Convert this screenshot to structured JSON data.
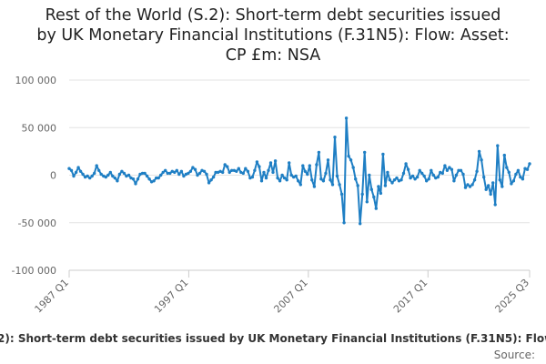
{
  "chart_data": {
    "type": "line",
    "title_lines": [
      "Rest of the World (S.2): Short-term debt securities issued",
      "by UK Monetary Financial Institutions (F.31N5): Flow: Asset:",
      "CP £m: NSA"
    ],
    "series_name": "Rest of the World (S.2): Short-term debt securities issued by UK Monetary Financial Institutions (F.31N5): Flow: Asset: CP £m: NSA",
    "source_label": "Source:",
    "ylim": [
      -100000,
      100000
    ],
    "yticks": [
      100000,
      50000,
      0,
      -50000,
      -100000
    ],
    "ytick_labels": [
      "100 000",
      "50 000",
      "0",
      "-50 000",
      "-100 000"
    ],
    "xticks": [
      {
        "label": "1987 Q1",
        "x": 1987.0
      },
      {
        "label": "1997 Q1",
        "x": 1997.0
      },
      {
        "label": "2007 Q1",
        "x": 2007.0
      },
      {
        "label": "2017 Q1",
        "x": 2017.0
      },
      {
        "label": "2025 Q3",
        "x": 2025.5
      }
    ],
    "x_start": "1987 Q1",
    "x_end": "2025 Q3",
    "grid": true,
    "line_color": "#1f7fc4",
    "values": [
      7000,
      5000,
      -1000,
      3000,
      8000,
      4000,
      1000,
      -2000,
      -1000,
      -3000,
      -1000,
      2000,
      10000,
      5000,
      1000,
      -1000,
      -2000,
      0,
      3000,
      -1000,
      -3000,
      -6000,
      1000,
      4000,
      2000,
      -1000,
      0,
      -3000,
      -4000,
      -9000,
      -4000,
      1000,
      2000,
      2000,
      -1000,
      -4000,
      -7000,
      -6000,
      -3000,
      -3000,
      0,
      3000,
      5000,
      2000,
      2000,
      4000,
      3000,
      5000,
      1000,
      4000,
      -1000,
      1000,
      2000,
      4000,
      8000,
      6000,
      0,
      2000,
      5000,
      4000,
      1000,
      -8000,
      -5000,
      -2000,
      3000,
      3000,
      4000,
      3000,
      11000,
      9000,
      3000,
      5000,
      5000,
      4000,
      7000,
      3000,
      2000,
      7000,
      4000,
      -3000,
      -2000,
      5000,
      14000,
      9000,
      -6000,
      3000,
      -3000,
      5000,
      13000,
      3000,
      15000,
      -3000,
      -6000,
      0,
      -3000,
      -5000,
      13000,
      0,
      -2000,
      -1000,
      -6000,
      -10000,
      10000,
      4000,
      1000,
      10000,
      -5000,
      -12000,
      11000,
      24000,
      -4000,
      -6000,
      2000,
      16000,
      -5000,
      -10000,
      40000,
      -1000,
      -10000,
      -20000,
      -50000,
      60000,
      20000,
      16000,
      8000,
      -4000,
      -11000,
      -51000,
      -20000,
      24000,
      -28000,
      0,
      -15000,
      -23000,
      -35000,
      -12000,
      -19000,
      22000,
      -11000,
      3000,
      -5000,
      -8000,
      -5000,
      -3000,
      -6000,
      -5000,
      2000,
      12000,
      6000,
      -3000,
      -1000,
      -4000,
      -2000,
      5000,
      2000,
      -1000,
      -6000,
      -4000,
      5000,
      0,
      -3000,
      -2000,
      3000,
      2000,
      10000,
      5000,
      8000,
      6000,
      -6000,
      0,
      5000,
      5000,
      1000,
      -13000,
      -10000,
      -12000,
      -10000,
      -5000,
      4000,
      25000,
      16000,
      -2000,
      -15000,
      -11000,
      -20000,
      -8000,
      -31000,
      31000,
      -5000,
      -12000,
      21000,
      8000,
      3000,
      -9000,
      -6000,
      1000,
      5000,
      -2000,
      -4000,
      7000,
      6000,
      12000
    ]
  }
}
